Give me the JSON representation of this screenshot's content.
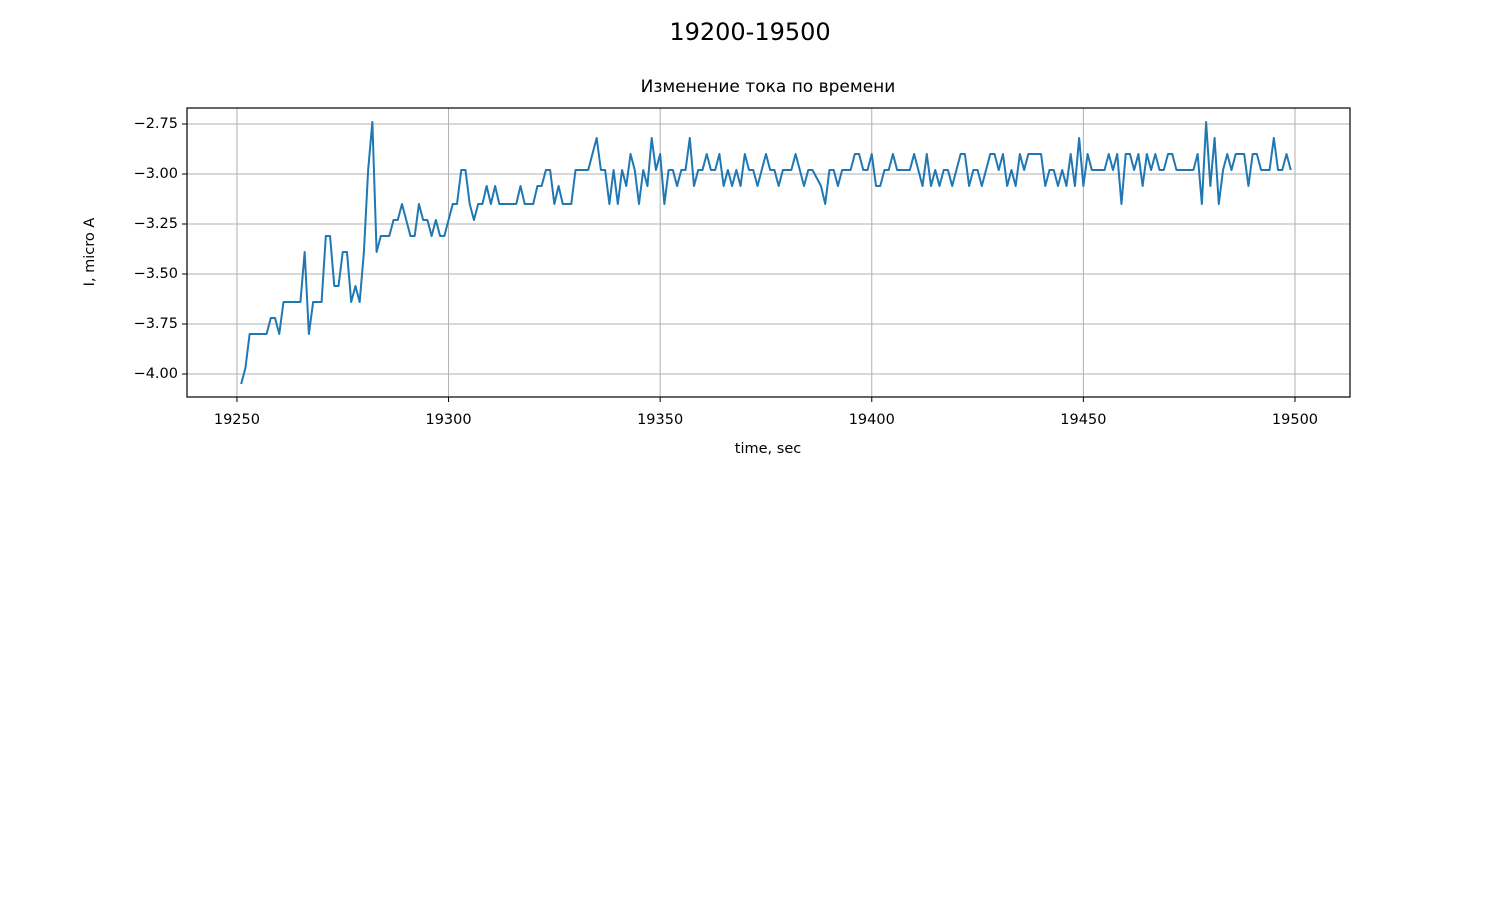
{
  "chart_data": {
    "type": "line",
    "title": "19200-19500",
    "subtitle": "Изменение тока по времени",
    "x_label": "time, sec",
    "y_label": "I, micro A",
    "color": "#1f77b4",
    "grid": true,
    "xlim": [
      19238.2,
      19513
    ],
    "ylim": [
      -4.115,
      -2.67
    ],
    "xticks": [
      19250,
      19300,
      19350,
      19400,
      19450,
      19500
    ],
    "yticks": [
      {
        "value": -2.75,
        "label": "−2.75"
      },
      {
        "value": -3.0,
        "label": "−3.00"
      },
      {
        "value": -3.25,
        "label": "−3.25"
      },
      {
        "value": -3.5,
        "label": "−3.50"
      },
      {
        "value": -3.75,
        "label": "−3.75"
      },
      {
        "value": -4.0,
        "label": "−4.00"
      }
    ],
    "x": [
      19251,
      19252,
      19253,
      19257,
      19258,
      19259,
      19260,
      19261,
      19265,
      19266,
      19267,
      19268,
      19270,
      19271,
      19272,
      19273,
      19274,
      19275,
      19276,
      19277,
      19278,
      19279,
      19280,
      19281,
      19282,
      19283,
      19284,
      19286,
      19287,
      19288,
      19289,
      19290,
      19291,
      19292,
      19293,
      19294,
      19295,
      19296,
      19297,
      19298,
      19299,
      19300,
      19301,
      19302,
      19303,
      19304,
      19305,
      19306,
      19307,
      19308,
      19309,
      19310,
      19311,
      19312,
      19316,
      19317,
      19318,
      19320,
      19321,
      19322,
      19323,
      19324,
      19325,
      19326,
      19327,
      19329,
      19330,
      19333,
      19335,
      19336,
      19337,
      19338,
      19339,
      19340,
      19341,
      19342,
      19343,
      19344,
      19345,
      19346,
      19347,
      19348,
      19349,
      19350,
      19351,
      19352,
      19353,
      19354,
      19355,
      19356,
      19357,
      19358,
      19359,
      19360,
      19361,
      19362,
      19363,
      19364,
      19365,
      19366,
      19367,
      19368,
      19369,
      19370,
      19371,
      19372,
      19373,
      19374,
      19375,
      19376,
      19377,
      19378,
      19379,
      19381,
      19382,
      19383,
      19384,
      19385,
      19386,
      19388,
      19389,
      19390,
      19391,
      19392,
      19393,
      19395,
      19396,
      19397,
      19398,
      19399,
      19400,
      19401,
      19402,
      19403,
      19404,
      19405,
      19406,
      19409,
      19410,
      19412,
      19413,
      19414,
      19415,
      19416,
      19417,
      19418,
      19419,
      19420,
      19421,
      19422,
      19423,
      19424,
      19425,
      19426,
      19427,
      19428,
      19429,
      19430,
      19431,
      19432,
      19433,
      19434,
      19435,
      19436,
      19437,
      19440,
      19441,
      19442,
      19443,
      19444,
      19445,
      19446,
      19447,
      19448,
      19449,
      19450,
      19451,
      19452,
      19455,
      19456,
      19457,
      19458,
      19459,
      19460,
      19461,
      19462,
      19463,
      19464,
      19465,
      19466,
      19467,
      19468,
      19469,
      19470,
      19471,
      19472,
      19476,
      19477,
      19478,
      19479,
      19480,
      19481,
      19482,
      19483,
      19484,
      19485,
      19486,
      19488,
      19489,
      19490,
      19491,
      19492,
      19494,
      19495,
      19496,
      19497,
      19498,
      19499
    ],
    "values": [
      -4.05,
      -3.97,
      -3.8,
      -3.8,
      -3.72,
      -3.72,
      -3.8,
      -3.64,
      -3.64,
      -3.39,
      -3.8,
      -3.64,
      -3.64,
      -3.31,
      -3.31,
      -3.56,
      -3.56,
      -3.39,
      -3.39,
      -3.64,
      -3.56,
      -3.64,
      -3.39,
      -2.98,
      -2.74,
      -3.39,
      -3.31,
      -3.31,
      -3.23,
      -3.23,
      -3.15,
      -3.23,
      -3.31,
      -3.31,
      -3.15,
      -3.23,
      -3.23,
      -3.31,
      -3.23,
      -3.31,
      -3.31,
      -3.23,
      -3.15,
      -3.15,
      -2.98,
      -2.98,
      -3.15,
      -3.23,
      -3.15,
      -3.15,
      -3.06,
      -3.15,
      -3.06,
      -3.15,
      -3.15,
      -3.06,
      -3.15,
      -3.15,
      -3.06,
      -3.06,
      -2.98,
      -2.98,
      -3.15,
      -3.06,
      -3.15,
      -3.15,
      -2.98,
      -2.98,
      -2.82,
      -2.98,
      -2.98,
      -3.15,
      -2.98,
      -3.15,
      -2.98,
      -3.06,
      -2.9,
      -2.98,
      -3.15,
      -2.98,
      -3.06,
      -2.82,
      -2.98,
      -2.9,
      -3.15,
      -2.98,
      -2.98,
      -3.06,
      -2.98,
      -2.98,
      -2.82,
      -3.06,
      -2.98,
      -2.98,
      -2.9,
      -2.98,
      -2.98,
      -2.9,
      -3.06,
      -2.98,
      -3.06,
      -2.98,
      -3.06,
      -2.9,
      -2.98,
      -2.98,
      -3.06,
      -2.98,
      -2.9,
      -2.98,
      -2.98,
      -3.06,
      -2.98,
      -2.98,
      -2.9,
      -2.98,
      -3.06,
      -2.98,
      -2.98,
      -3.06,
      -3.15,
      -2.98,
      -2.98,
      -3.06,
      -2.98,
      -2.98,
      -2.9,
      -2.9,
      -2.98,
      -2.98,
      -2.9,
      -3.06,
      -3.06,
      -2.98,
      -2.98,
      -2.9,
      -2.98,
      -2.98,
      -2.9,
      -3.06,
      -2.9,
      -3.06,
      -2.98,
      -3.06,
      -2.98,
      -2.98,
      -3.06,
      -2.98,
      -2.9,
      -2.9,
      -3.06,
      -2.98,
      -2.98,
      -3.06,
      -2.98,
      -2.9,
      -2.9,
      -2.98,
      -2.9,
      -3.06,
      -2.98,
      -3.06,
      -2.9,
      -2.98,
      -2.9,
      -2.9,
      -3.06,
      -2.98,
      -2.98,
      -3.06,
      -2.98,
      -3.06,
      -2.9,
      -3.06,
      -2.82,
      -3.06,
      -2.9,
      -2.98,
      -2.98,
      -2.9,
      -2.98,
      -2.9,
      -3.15,
      -2.9,
      -2.9,
      -2.98,
      -2.9,
      -3.06,
      -2.9,
      -2.98,
      -2.9,
      -2.98,
      -2.98,
      -2.9,
      -2.9,
      -2.98,
      -2.98,
      -2.9,
      -3.15,
      -2.74,
      -3.06,
      -2.82,
      -3.15,
      -2.98,
      -2.9,
      -2.98,
      -2.9,
      -2.9,
      -3.06,
      -2.9,
      -2.9,
      -2.98,
      -2.98,
      -2.82,
      -2.98,
      -2.98,
      -2.9,
      -2.98
    ]
  }
}
